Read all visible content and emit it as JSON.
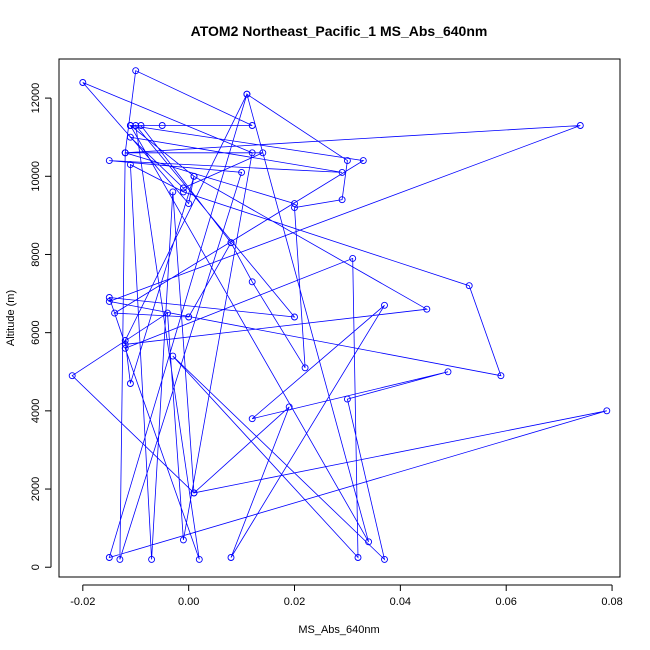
{
  "chart_data": {
    "type": "line",
    "title": "ATOM2 Northeast_Pacific_1 MS_Abs_640nm",
    "xlabel": "MS_Abs_640nm",
    "ylabel": "Altitude (m)",
    "xlim": [
      -0.0245,
      0.0815
    ],
    "ylim": [
      -250,
      13000
    ],
    "x_ticks": [
      -0.02,
      0,
      0.02,
      0.04,
      0.06,
      0.08
    ],
    "x_tick_labels": [
      "-0.02",
      "0.00",
      "0.02",
      "0.04",
      "0.06",
      "0.08"
    ],
    "y_ticks": [
      0,
      2000,
      4000,
      6000,
      8000,
      10000,
      12000
    ],
    "y_tick_labels": [
      "0",
      "2000",
      "4000",
      "6000",
      "8000",
      "10000",
      "12000"
    ],
    "grid": false,
    "legend": "none",
    "line_color": "#0000ff",
    "marker": "open-circle",
    "series": [
      {
        "x": [
          -0.009,
          0.008,
          0.012,
          0.022,
          0.02,
          0.029,
          0.03,
          0.011,
          -0.012,
          -0.011,
          0.001,
          0.045,
          -0.012,
          -0.015,
          0.02,
          -0.01,
          0.002,
          -0.012,
          0.031,
          0.032,
          -0.003,
          0.037,
          0.03,
          0.049,
          0.012,
          0.037,
          0.008,
          0.019,
          0.001,
          -0.003,
          -0.007,
          -0.011,
          -0.001,
          0.053,
          0.059,
          -0.015,
          0.074,
          -0.012,
          0.02,
          -0.012,
          -0.013,
          0.01,
          -0.015,
          0.029,
          -0.011,
          -0.001,
          0.014,
          -0.012,
          -0.01,
          0.012,
          -0.005,
          -0.011,
          0.034,
          0.011,
          -0.015,
          0.079,
          0.001,
          -0.022,
          -0.004,
          -0.001,
          0.012,
          -0.02,
          0.0,
          0.001,
          -0.011,
          0.033,
          -0.014,
          0.0,
          0.008
        ],
        "y": [
          11300,
          8300,
          7300,
          5100,
          9200,
          9400,
          10400,
          12100,
          5800,
          4700,
          10000,
          6600,
          5700,
          6900,
          6400,
          11300,
          200,
          5600,
          7900,
          250,
          5400,
          200,
          4300,
          5000,
          3800,
          6700,
          250,
          4100,
          1900,
          9600,
          200,
          10300,
          9600,
          7200,
          4900,
          6800,
          11300,
          10600,
          9300,
          10600,
          200,
          10100,
          10400,
          10100,
          11000,
          9700,
          10600,
          10600,
          12700,
          11300,
          11300,
          11300,
          650,
          12100,
          250,
          4000,
          1900,
          4900,
          6500,
          700,
          10600,
          12400,
          9300,
          10000,
          11300,
          10400,
          6500,
          6400,
          8300
        ]
      }
    ]
  }
}
